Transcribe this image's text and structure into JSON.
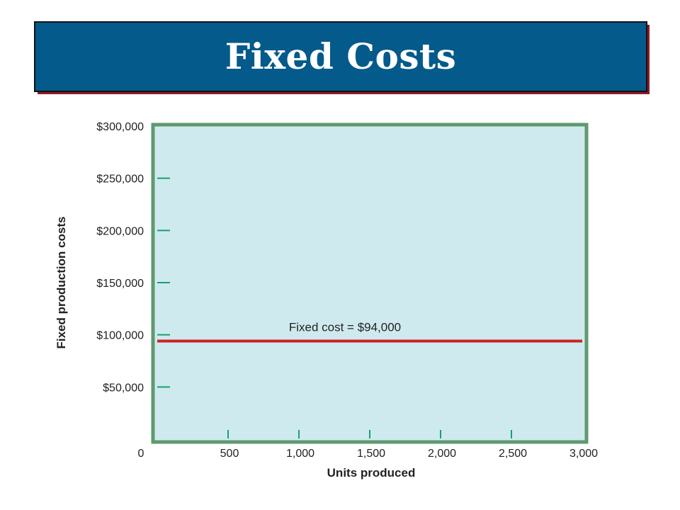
{
  "slide": {
    "title": "Fixed Costs"
  },
  "colors": {
    "banner": "#045a8a",
    "banner_shadow": "#8c1a2a",
    "plot_background": "#cfeaef",
    "plot_frame": "#5e9a6e",
    "tick": "#1aa06a",
    "series_line": "#cc2222"
  },
  "chart_data": {
    "type": "line",
    "title": "",
    "xlabel": "Units produced",
    "ylabel": "Fixed production costs",
    "xlim": [
      0,
      3000
    ],
    "ylim": [
      0,
      300000
    ],
    "x_ticks": [
      500,
      1000,
      1500,
      2000,
      2500,
      3000
    ],
    "x_tick_labels": [
      "500",
      "1,000",
      "1,500",
      "2,000",
      "2,500",
      "3,000"
    ],
    "y_ticks": [
      50000,
      100000,
      150000,
      200000,
      250000,
      300000
    ],
    "y_tick_labels": [
      "$50,000",
      "$100,000",
      "$150,000",
      "$200,000",
      "$250,000",
      "$300,000"
    ],
    "origin_label": "0",
    "grid": false,
    "series": [
      {
        "x": [
          0,
          3000
        ],
        "y": [
          94000,
          94000
        ]
      }
    ],
    "annotations": [
      {
        "text": "Fixed cost = $94,000",
        "x": 1500,
        "y": 94000
      }
    ]
  }
}
